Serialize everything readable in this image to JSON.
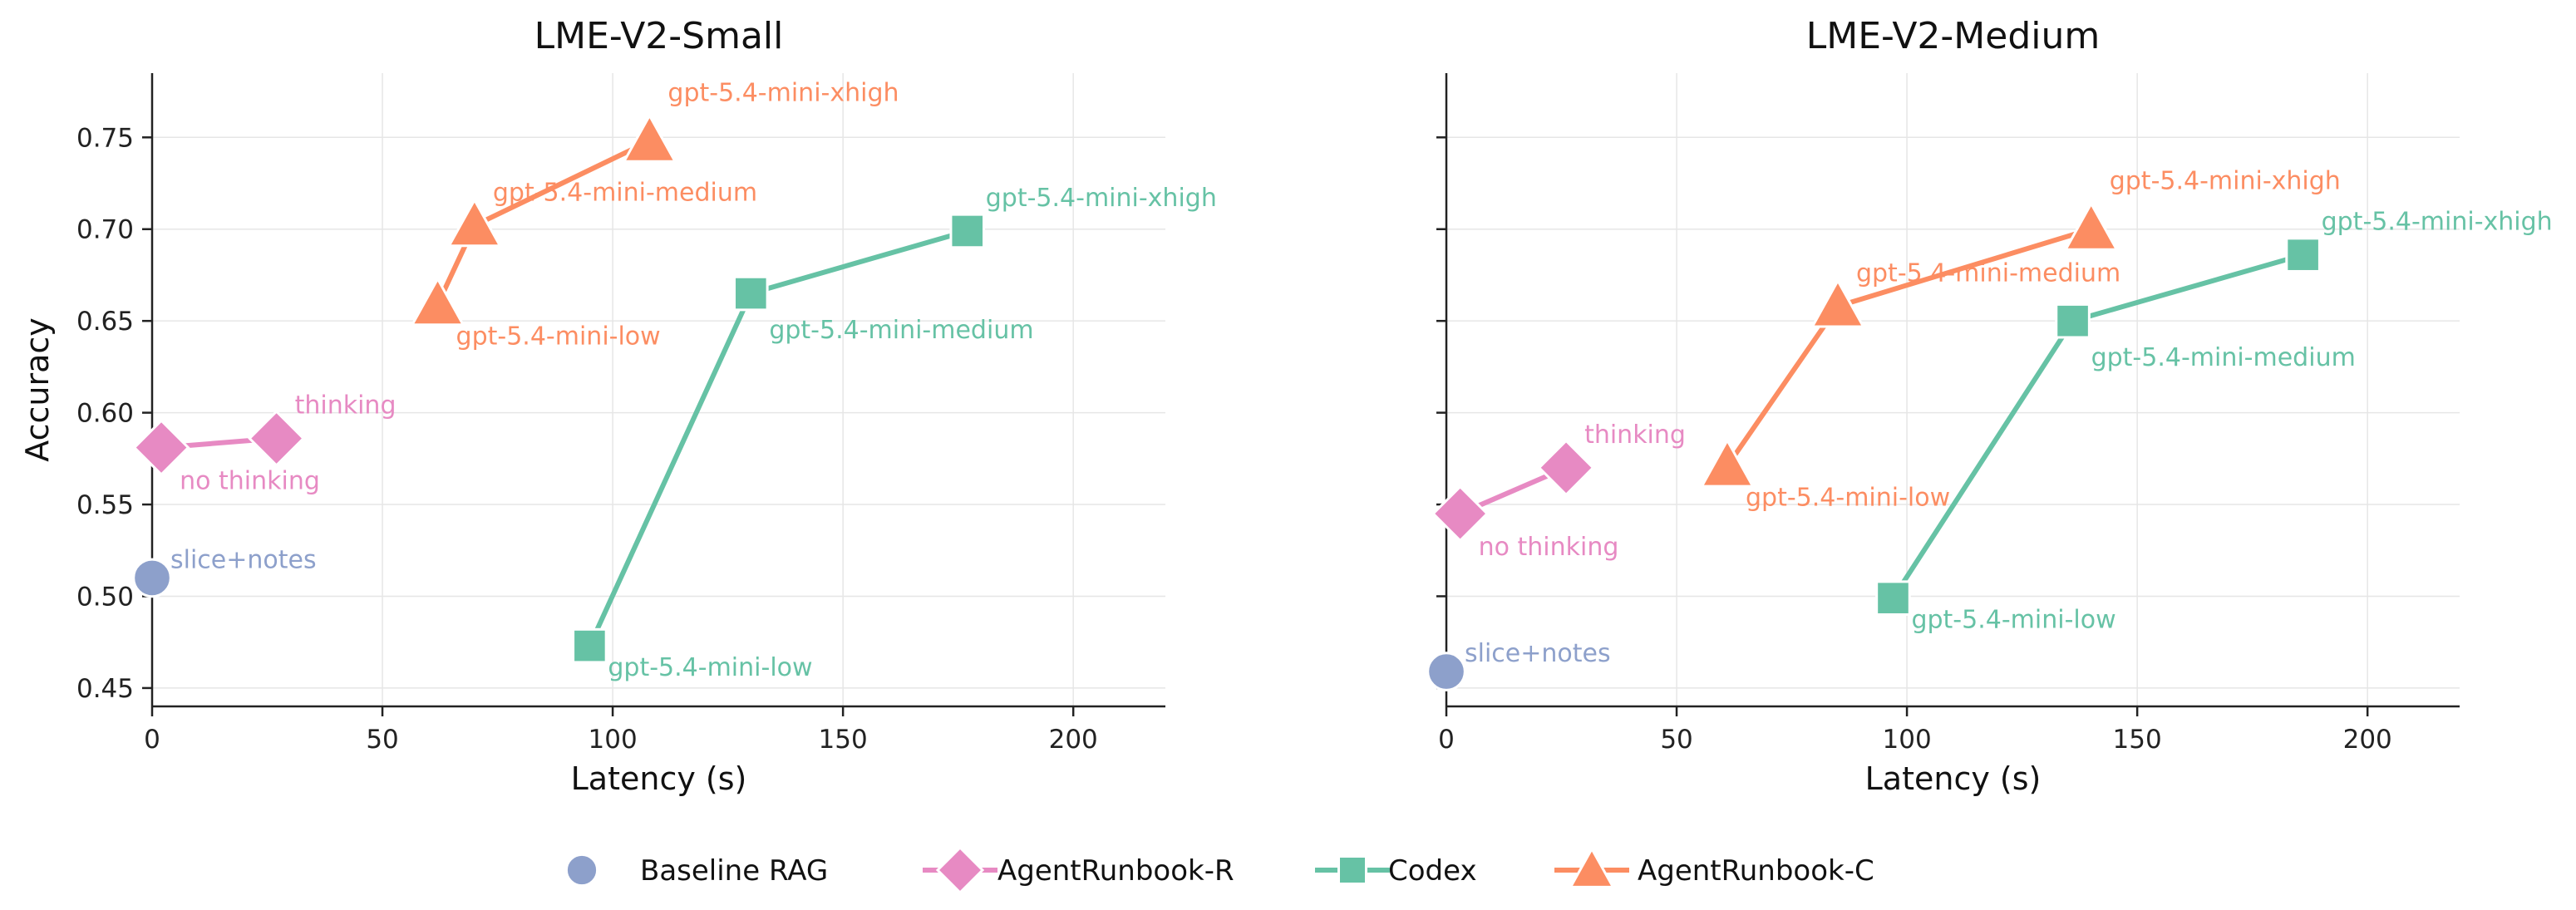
{
  "chart_data": [
    {
      "type": "line",
      "title": "LME-V2-Small",
      "xlabel": "Latency (s)",
      "ylabel": "Accuracy",
      "xlim": [
        0,
        220
      ],
      "ylim": [
        0.44,
        0.785
      ],
      "xticks": [
        0,
        50,
        100,
        150,
        200
      ],
      "yticks": [
        0.45,
        0.5,
        0.55,
        0.6,
        0.65,
        0.7,
        0.75
      ],
      "grid": true,
      "series": [
        {
          "name": "Baseline RAG",
          "color": "#8DA0CB",
          "marker": "circle",
          "points": [
            {
              "x": 0,
              "y": 0.51,
              "label": "slice+notes"
            }
          ]
        },
        {
          "name": "AgentRunbook-R",
          "color": "#E78AC3",
          "marker": "diamond",
          "points": [
            {
              "x": 2,
              "y": 0.581,
              "label": "no thinking"
            },
            {
              "x": 27,
              "y": 0.586,
              "label": "thinking"
            }
          ]
        },
        {
          "name": "Codex",
          "color": "#66C2A5",
          "marker": "square",
          "points": [
            {
              "x": 95,
              "y": 0.473,
              "label": "gpt-5.4-mini-low"
            },
            {
              "x": 130,
              "y": 0.665,
              "label": "gpt-5.4-mini-medium"
            },
            {
              "x": 177,
              "y": 0.699,
              "label": "gpt-5.4-mini-xhigh"
            }
          ]
        },
        {
          "name": "AgentRunbook-C",
          "color": "#FC8D62",
          "marker": "triangle",
          "points": [
            {
              "x": 62,
              "y": 0.659,
              "label": "gpt-5.4-mini-low"
            },
            {
              "x": 70,
              "y": 0.702,
              "label": "gpt-5.4-mini-medium"
            },
            {
              "x": 108,
              "y": 0.748,
              "label": "gpt-5.4-mini-xhigh"
            }
          ]
        }
      ]
    },
    {
      "type": "line",
      "title": "LME-V2-Medium",
      "xlabel": "Latency (s)",
      "ylabel": "",
      "xlim": [
        0,
        220
      ],
      "ylim": [
        0.44,
        0.785
      ],
      "xticks": [
        0,
        50,
        100,
        150,
        200
      ],
      "yticks": [
        0.45,
        0.5,
        0.55,
        0.6,
        0.65,
        0.7,
        0.75
      ],
      "grid": true,
      "series": [
        {
          "name": "Baseline RAG",
          "color": "#8DA0CB",
          "marker": "circle",
          "points": [
            {
              "x": 0,
              "y": 0.459,
              "label": "slice+notes"
            }
          ]
        },
        {
          "name": "AgentRunbook-R",
          "color": "#E78AC3",
          "marker": "diamond",
          "points": [
            {
              "x": 3,
              "y": 0.545,
              "label": "no thinking"
            },
            {
              "x": 26,
              "y": 0.57,
              "label": "thinking"
            }
          ]
        },
        {
          "name": "Codex",
          "color": "#66C2A5",
          "marker": "square",
          "points": [
            {
              "x": 97,
              "y": 0.499,
              "label": "gpt-5.4-mini-low"
            },
            {
              "x": 136,
              "y": 0.65,
              "label": "gpt-5.4-mini-medium"
            },
            {
              "x": 186,
              "y": 0.686,
              "label": "gpt-5.4-mini-xhigh"
            }
          ]
        },
        {
          "name": "AgentRunbook-C",
          "color": "#FC8D62",
          "marker": "triangle",
          "points": [
            {
              "x": 61,
              "y": 0.571,
              "label": "gpt-5.4-mini-low"
            },
            {
              "x": 85,
              "y": 0.658,
              "label": "gpt-5.4-mini-medium"
            },
            {
              "x": 140,
              "y": 0.7,
              "label": "gpt-5.4-mini-xhigh"
            }
          ]
        }
      ]
    }
  ],
  "legend": {
    "position": "bottom-center",
    "items": [
      {
        "label": "Baseline RAG",
        "color": "#8DA0CB",
        "marker": "circle",
        "line": false
      },
      {
        "label": "AgentRunbook-R",
        "color": "#E78AC3",
        "marker": "diamond",
        "line": true
      },
      {
        "label": "Codex",
        "color": "#66C2A5",
        "marker": "square",
        "line": true
      },
      {
        "label": "AgentRunbook-C",
        "color": "#FC8D62",
        "marker": "triangle",
        "line": true
      }
    ]
  }
}
